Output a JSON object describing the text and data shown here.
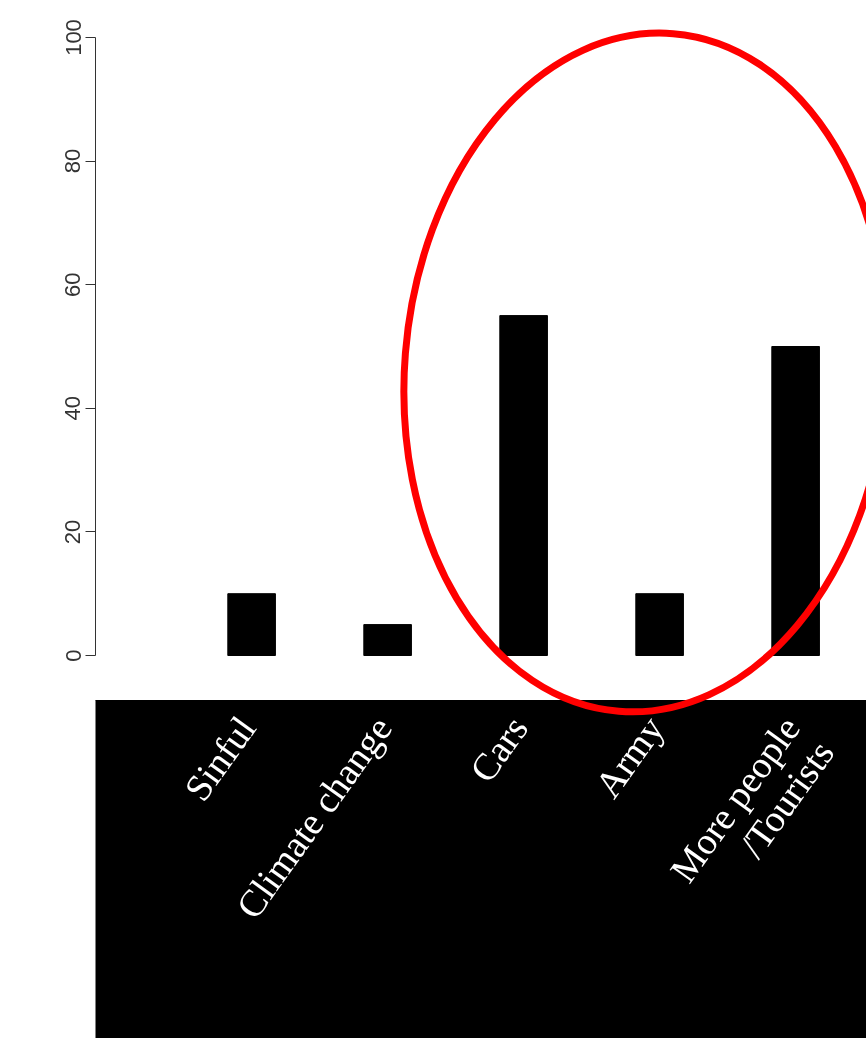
{
  "chart_data": {
    "type": "bar",
    "categories": [
      "Sinful",
      "Climate change",
      "Cars",
      "Army",
      "More people\n/Tourists"
    ],
    "values": [
      10,
      5,
      55,
      10,
      50
    ],
    "color": "#000000",
    "ylim": [
      0,
      100
    ],
    "yticks": [
      0,
      20,
      40,
      60,
      80,
      100
    ],
    "grid": false
  }
}
